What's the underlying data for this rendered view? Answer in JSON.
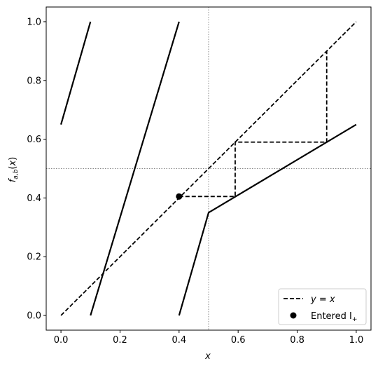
{
  "chart_data": {
    "type": "line",
    "xlabel": "x",
    "ylabel": "f_{a,b}(x)",
    "xlim": [
      -0.05,
      1.05
    ],
    "ylim": [
      -0.05,
      1.05
    ],
    "xticks": [
      0.0,
      0.2,
      0.4,
      0.6,
      0.8,
      1.0
    ],
    "xtick_labels": [
      "0.0",
      "0.2",
      "0.4",
      "0.6",
      "0.8",
      "1.0"
    ],
    "yticks": [
      0.0,
      0.2,
      0.4,
      0.6,
      0.8,
      1.0
    ],
    "ytick_labels": [
      "0.0",
      "0.2",
      "0.4",
      "0.6",
      "0.8",
      "1.0"
    ],
    "grid": false,
    "legend_position": "bottom-right",
    "reference_lines": {
      "vertical_x": 0.5,
      "horizontal_y": 0.5,
      "style": "dotted",
      "color": "#888888"
    },
    "series": [
      {
        "kind": "solid",
        "color": "#000000",
        "segments": [
          [
            [
              0.0,
              0.65
            ],
            [
              0.1,
              1.0
            ]
          ],
          [
            [
              0.1,
              0.0
            ],
            [
              0.4,
              1.0
            ]
          ],
          [
            [
              0.4,
              0.0
            ],
            [
              0.5,
              0.35
            ],
            [
              1.0,
              0.65
            ]
          ]
        ]
      },
      {
        "name": "y = x",
        "kind": "dashed",
        "color": "#000000",
        "points": [
          [
            0.0,
            0.0
          ],
          [
            1.0,
            1.0
          ]
        ]
      },
      {
        "kind": "dashed",
        "color": "#000000",
        "points": [
          [
            0.4,
            0.405
          ],
          [
            0.59,
            0.405
          ],
          [
            0.59,
            0.59
          ],
          [
            0.9,
            0.59
          ],
          [
            0.9,
            0.9
          ]
        ]
      },
      {
        "name": "Entered I_+",
        "kind": "marker",
        "color": "#000000",
        "points": [
          [
            0.4,
            0.405
          ]
        ]
      }
    ],
    "legend": [
      {
        "label_main": "y = x",
        "label_sub": "",
        "kind": "dashed"
      },
      {
        "label_main": "Entered I",
        "label_sub": "+",
        "kind": "marker"
      }
    ]
  }
}
